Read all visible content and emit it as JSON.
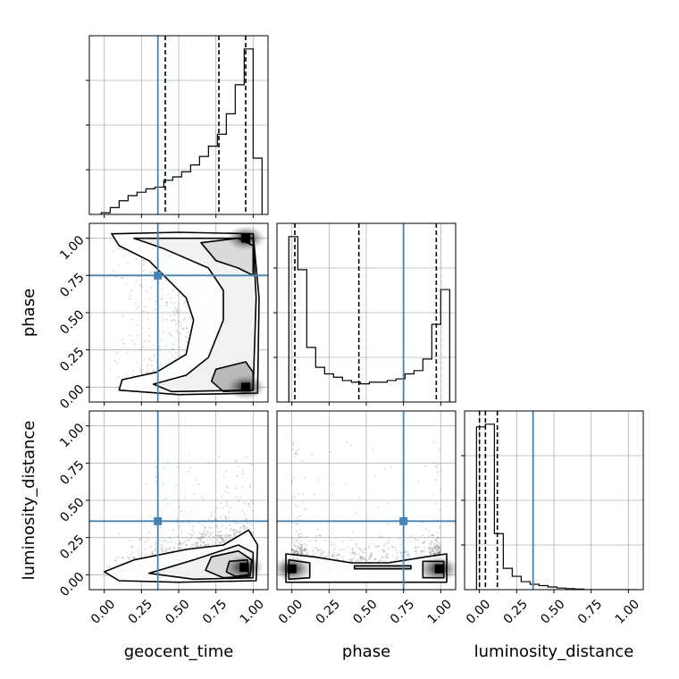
{
  "chart_data": {
    "type": "corner",
    "parameters": [
      "geocent_time",
      "phase",
      "luminosity_distance"
    ],
    "labels": {
      "x": [
        "geocent_time",
        "phase",
        "luminosity_distance"
      ],
      "y": [
        "",
        "phase",
        "luminosity_distance"
      ]
    },
    "ticks": [
      0.0,
      0.25,
      0.5,
      0.75,
      1.0
    ],
    "tick_labels": [
      "0.00",
      "0.25",
      "0.50",
      "0.75",
      "1.00"
    ],
    "xlim": [
      -0.1,
      1.1
    ],
    "ylim": [
      -0.1,
      1.1
    ],
    "grid": true,
    "truths": [
      0.36,
      0.75,
      0.36
    ],
    "truth_color": "#4682b4",
    "quantiles": {
      "geocent_time": [
        0.41,
        0.77,
        0.95
      ],
      "phase": [
        0.02,
        0.45,
        0.97
      ],
      "luminosity_distance": [
        0.0,
        0.04,
        0.12
      ]
    },
    "histograms": {
      "geocent_time": {
        "bin_edges": [
          -0.02,
          0.04,
          0.1,
          0.16,
          0.22,
          0.28,
          0.34,
          0.4,
          0.46,
          0.52,
          0.58,
          0.64,
          0.7,
          0.76,
          0.82,
          0.88,
          0.94,
          1.0,
          1.06
        ],
        "counts": [
          1,
          4,
          8,
          11,
          13,
          15,
          16,
          20,
          22,
          25,
          29,
          34,
          40,
          47,
          59,
          76,
          97,
          33
        ]
      },
      "phase": {
        "bin_edges": [
          -0.02,
          0.04,
          0.1,
          0.16,
          0.22,
          0.28,
          0.34,
          0.4,
          0.46,
          0.52,
          0.58,
          0.64,
          0.7,
          0.76,
          0.82,
          0.88,
          0.94,
          1.0,
          1.06
        ],
        "counts": [
          100,
          80,
          33,
          21,
          17,
          15,
          13,
          12,
          11,
          12,
          12,
          13,
          14,
          17,
          19,
          26,
          47,
          68
        ]
      },
      "luminosity_distance": {
        "bin_edges": [
          -0.02,
          0.04,
          0.1,
          0.16,
          0.22,
          0.28,
          0.34,
          0.4,
          0.46,
          0.52,
          0.58,
          0.64,
          0.7,
          0.76,
          0.82,
          0.88,
          0.94,
          1.0,
          1.06
        ],
        "counts": [
          61,
          62,
          21,
          8,
          5,
          3,
          2,
          1.5,
          1,
          0.6,
          0.4,
          0.2,
          0,
          0,
          0,
          0,
          0,
          0
        ]
      }
    },
    "density_peaks": {
      "phase_vs_geocent_time": [
        [
          0.95,
          0.0
        ],
        [
          0.95,
          1.0
        ]
      ],
      "luminosity_distance_vs_geocent_time": [
        [
          0.94,
          0.05
        ]
      ],
      "luminosity_distance_vs_phase": [
        [
          0.0,
          0.04
        ],
        [
          0.99,
          0.04
        ]
      ]
    }
  }
}
